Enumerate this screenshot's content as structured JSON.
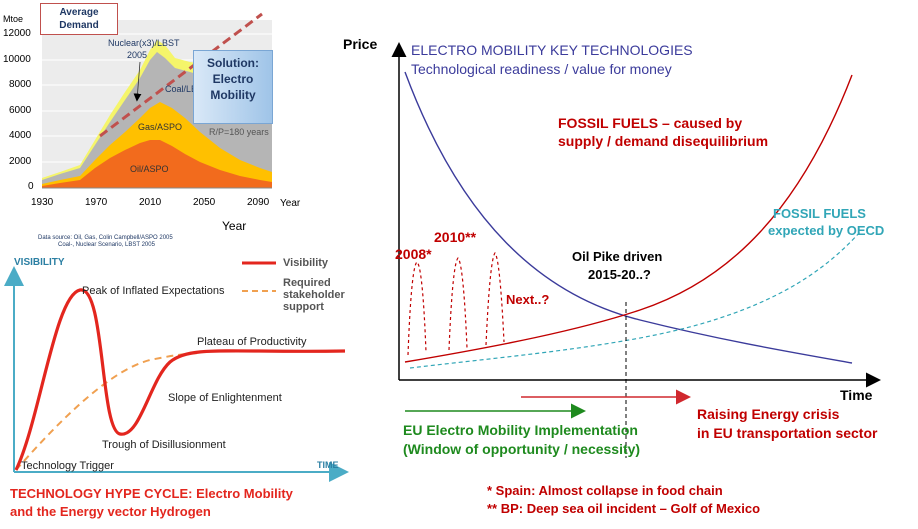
{
  "top_chart": {
    "y_unit": "Mtoe",
    "y_ticks": [
      "12000",
      "10000",
      "8000",
      "6000",
      "4000",
      "2000",
      "0"
    ],
    "x_ticks": [
      "1930",
      "1970",
      "2010",
      "2050",
      "2090"
    ],
    "x_unit": "Year",
    "x_label": "Year",
    "average_demand": "Average Demand",
    "solution": "Solution: Electro Mobility",
    "labels": {
      "nuclear": "Nuclear(x3)/LBST",
      "nuclear_year": "2005",
      "coal": "Coal/LBST",
      "gas": "Gas/ASPO",
      "oil": "Oil/ASPO",
      "rp": "R/P=180 years"
    },
    "source_line1": "Data source: Oil, Gas, Colin Campbell/ASPO 2005",
    "source_line2": "Coal-, Nuclear Scenario, LBST 2005",
    "colors": {
      "oil": "#f26b1d",
      "gas": "#ffc000",
      "coal": "#b8b8b8",
      "nuclear": "#f5f56a",
      "demand": "#c0504d"
    }
  },
  "hype_cycle": {
    "y_axis": "VISIBILITY",
    "x_axis": "TIME",
    "legend_visibility": "Visibility",
    "legend_required": "Required stakeholder support",
    "phases": {
      "peak": "Peak of Inflated Expectations",
      "plateau": "Plateau of Productivity",
      "slope": "Slope of Enlightenment",
      "trough": "Trough of Disillusionment",
      "trigger": "Technology Trigger"
    },
    "caption_line1": "TECHNOLOGY HYPE CYCLE: Electro Mobility",
    "caption_line2": "and the Energy vector Hydrogen",
    "colors": {
      "visibility": "#e3261e",
      "support": "#f0a050",
      "axis": "#4bacc6"
    }
  },
  "main": {
    "y_axis": "Price",
    "x_axis": "Time",
    "emk_title": "ELECTRO MOBILITY KEY TECHNOLOGIES",
    "emk_subtitle": "Technological readiness / value for money",
    "fossil_title": "FOSSIL FUELS – caused by",
    "fossil_sub": "supply / demand disequilibrium",
    "oecd_title": "FOSSIL FUELS",
    "oecd_sub": "expected by OECD",
    "spike_2008": "2008*",
    "spike_2010": "2010**",
    "next": "Next..?",
    "oil_pike_1": "Oil Pike driven",
    "oil_pike_2": "2015-20..?",
    "eu_impl_1": "EU Electro Mobility Implementation",
    "eu_impl_2": "(Window of opportunity / necessity)",
    "crisis_1": "Raising Energy crisis",
    "crisis_2": "in EU transportation sector",
    "footnote_1": "*  Spain: Almost collapse in food chain",
    "footnote_2": "** BP: Deep sea oil incident – Golf of Mexico",
    "colors": {
      "blue": "#3b3b9b",
      "red": "#c00000",
      "teal": "#31a6b7",
      "green": "#1e8a1e"
    }
  }
}
